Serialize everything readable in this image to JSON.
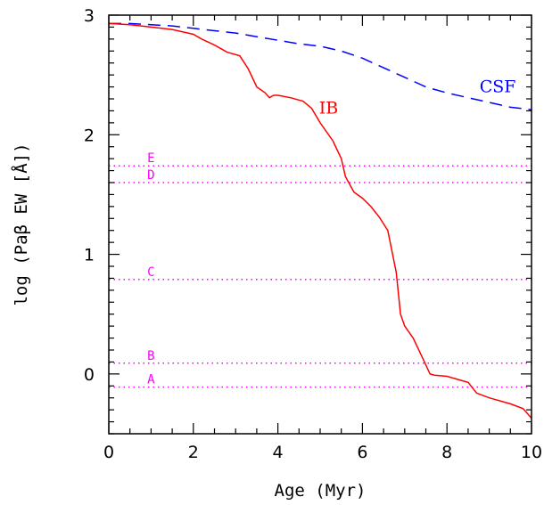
{
  "chart_data": {
    "type": "line",
    "xlabel": "Age (Myr)",
    "ylabel": "log (Paβ EW [Å])",
    "xlim": [
      0,
      10
    ],
    "ylim": [
      -0.5,
      3
    ],
    "x_ticks": [
      "0",
      "2",
      "4",
      "6",
      "8",
      "10"
    ],
    "y_ticks": [
      "0",
      "1",
      "2",
      "3"
    ],
    "grid": false,
    "series": [
      {
        "name": "CSF",
        "color": "#0000ff",
        "style": "dashed",
        "x": [
          0,
          0.5,
          1,
          1.5,
          2,
          2.5,
          3,
          3.5,
          4,
          4.5,
          5,
          5.5,
          6,
          6.5,
          7,
          7.5,
          8,
          8.5,
          9,
          9.5,
          10
        ],
        "y": [
          2.93,
          2.93,
          2.92,
          2.91,
          2.89,
          2.87,
          2.85,
          2.82,
          2.79,
          2.76,
          2.74,
          2.7,
          2.64,
          2.56,
          2.48,
          2.4,
          2.35,
          2.31,
          2.27,
          2.23,
          2.21
        ]
      },
      {
        "name": "IB",
        "color": "#ff0000",
        "style": "solid",
        "x": [
          0,
          0.5,
          1,
          1.5,
          2,
          2.2,
          2.5,
          2.8,
          3.1,
          3.3,
          3.5,
          3.7,
          3.8,
          3.9,
          4.0,
          4.3,
          4.6,
          4.8,
          5.0,
          5.3,
          5.5,
          5.6,
          5.8,
          6.0,
          6.2,
          6.4,
          6.6,
          6.8,
          6.9,
          7.0,
          7.2,
          7.4,
          7.6,
          7.7,
          8.0,
          8.3,
          8.5,
          8.7,
          9.0,
          9.5,
          9.8,
          10
        ],
        "y": [
          2.93,
          2.92,
          2.9,
          2.88,
          2.84,
          2.8,
          2.75,
          2.69,
          2.66,
          2.55,
          2.4,
          2.35,
          2.31,
          2.33,
          2.33,
          2.31,
          2.28,
          2.22,
          2.1,
          1.95,
          1.8,
          1.65,
          1.52,
          1.47,
          1.4,
          1.31,
          1.2,
          0.85,
          0.5,
          0.4,
          0.3,
          0.15,
          0.0,
          -0.01,
          -0.02,
          -0.05,
          -0.07,
          -0.16,
          -0.2,
          -0.25,
          -0.29,
          -0.37
        ]
      }
    ],
    "reference_lines": [
      {
        "label": "A",
        "y": -0.11,
        "color": "#ff00ff"
      },
      {
        "label": "B",
        "y": 0.09,
        "color": "#ff00ff"
      },
      {
        "label": "C",
        "y": 0.79,
        "color": "#ff00ff"
      },
      {
        "label": "D",
        "y": 1.6,
        "color": "#ff00ff"
      },
      {
        "label": "E",
        "y": 1.74,
        "color": "#ff00ff"
      }
    ]
  }
}
